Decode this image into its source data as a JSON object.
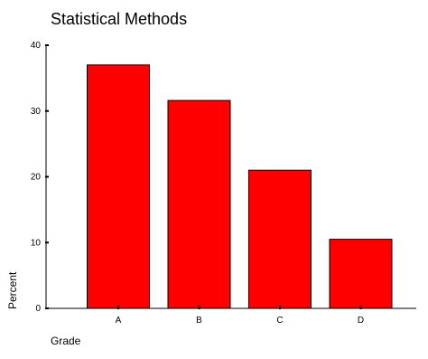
{
  "chart_data": {
    "type": "bar",
    "title": "Statistical Methods",
    "xlabel": "Grade",
    "ylabel": "Percent",
    "categories": [
      "A",
      "B",
      "C",
      "D"
    ],
    "values": [
      37,
      31.6,
      21,
      10.5
    ],
    "ylim": [
      0,
      40
    ],
    "yticks": [
      "0",
      "10",
      "20",
      "30",
      "40"
    ],
    "bar_color": "#ff0000",
    "grid": false
  }
}
